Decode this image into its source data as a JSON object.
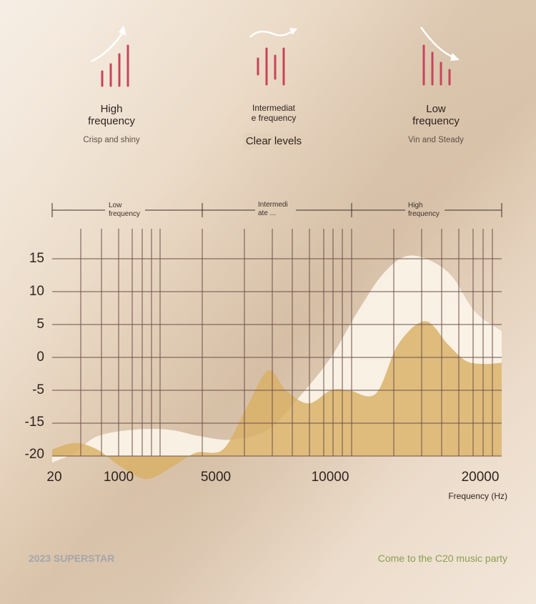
{
  "bands": [
    {
      "title_lines": [
        "High",
        "frequency"
      ],
      "subtitle": "Crisp and shiny"
    },
    {
      "title_lines": [
        "Intermediat",
        "e frequency"
      ],
      "subtitle": "Clear levels"
    },
    {
      "title_lines": [
        "Low",
        "frequency"
      ],
      "subtitle": "Vin and Steady"
    }
  ],
  "footer": {
    "left": "2023 SUPERSTAR",
    "right": "Come to the C20 music party"
  },
  "colors": {
    "accent": "#c8435a",
    "fill_gold": "#d9b064",
    "fill_cream": "#fbf4e8",
    "grid": "#6e4f4a"
  },
  "chart_data": {
    "type": "area",
    "xlabel": "Frequency (Hz)",
    "ylim": [
      -20,
      15
    ],
    "y_ticks": [
      "15",
      "10",
      "5",
      "0",
      "-5",
      "-15",
      "-20"
    ],
    "x_ticks": [
      "20",
      "1000",
      "5000",
      "10000",
      "20000"
    ],
    "regions": [
      {
        "lines": [
          "Low",
          "frequency"
        ]
      },
      {
        "lines": [
          "Intermedi",
          "ate ..."
        ]
      },
      {
        "lines": [
          "High",
          "frequency"
        ]
      }
    ],
    "series": [
      {
        "x": [
          0,
          0.05,
          0.1,
          0.18,
          0.26,
          0.33,
          0.4,
          0.48,
          0.55,
          0.62,
          0.68,
          0.74,
          0.8,
          0.88,
          0.94,
          1.0
        ],
        "values": [
          -16,
          -14.5,
          -12,
          -11,
          -11,
          -12,
          -12.5,
          -11,
          -6,
          0,
          7,
          13,
          15.5,
          13,
          7,
          4
        ]
      },
      {
        "x": [
          0,
          0.05,
          0.1,
          0.15,
          0.21,
          0.27,
          0.32,
          0.38,
          0.43,
          0.48,
          0.52,
          0.57,
          0.62,
          0.66,
          0.72,
          0.77,
          0.83,
          0.88,
          0.92,
          0.96,
          1.0
        ],
        "values": [
          -14,
          -13,
          -14,
          -16.5,
          -18.5,
          -16.5,
          -14.5,
          -14,
          -8,
          -2,
          -5,
          -7,
          -5,
          -5,
          -5.5,
          2,
          5.5,
          2,
          -0.5,
          -1,
          -0.8
        ]
      }
    ]
  }
}
